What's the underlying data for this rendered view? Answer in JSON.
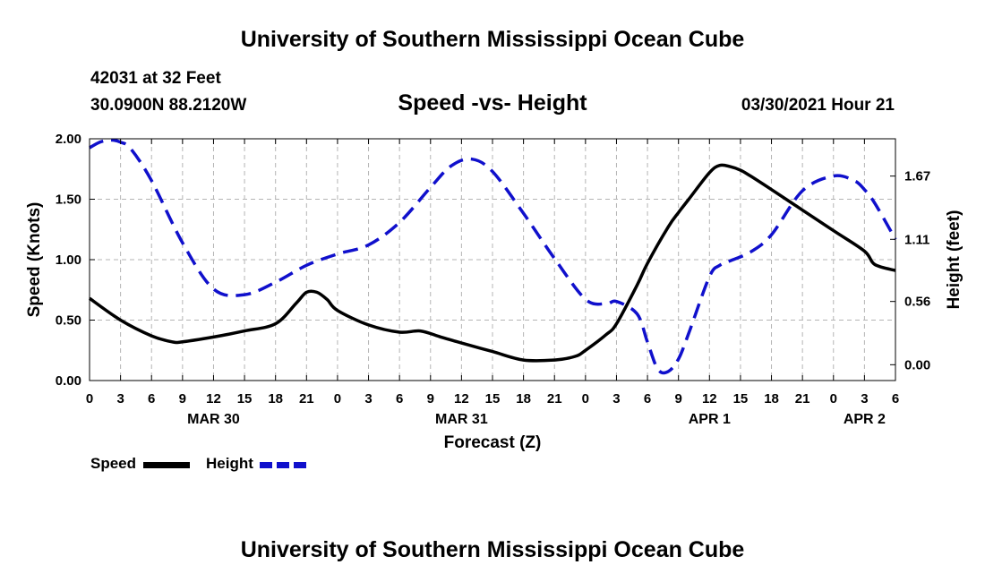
{
  "header": {
    "title": "University of Southern Mississippi Ocean Cube",
    "station": "42031 at 32 Feet",
    "coords": "30.0900N  88.2120W",
    "chart_title": "Speed -vs- Height",
    "date": "03/30/2021 Hour 21"
  },
  "footer": {
    "title": "University of Southern Mississippi Ocean Cube"
  },
  "legend": {
    "speed_label": "Speed",
    "height_label": "Height",
    "speed_color": "#000000",
    "height_color": "#1010cc"
  },
  "chart_data": {
    "type": "line",
    "title": "Speed -vs- Height",
    "xlabel": "Forecast (Z)",
    "ylabel": "Speed (Knots)",
    "ylabel_right": "Height (feet)",
    "x_range_hours": [
      0,
      78
    ],
    "ylim": [
      0,
      2.0
    ],
    "ylim_right": [
      -0.14,
      2.0
    ],
    "y_ticks": [
      "0.00",
      "0.50",
      "1.00",
      "1.50",
      "2.00"
    ],
    "y_ticks_right": [
      "0.00",
      "0.56",
      "1.11",
      "1.67"
    ],
    "x_ticks": [
      "0",
      "3",
      "6",
      "9",
      "12",
      "15",
      "18",
      "21",
      "0",
      "3",
      "6",
      "9",
      "12",
      "15",
      "18",
      "21",
      "0",
      "3",
      "6",
      "9",
      "12",
      "15",
      "18",
      "21",
      "0",
      "3",
      "6"
    ],
    "date_labels": [
      {
        "label": "MAR 30",
        "hour": 12
      },
      {
        "label": "MAR 31",
        "hour": 36
      },
      {
        "label": "APR 1",
        "hour": 60
      },
      {
        "label": "APR 2",
        "hour": 75
      }
    ],
    "grid": true,
    "series": [
      {
        "name": "Speed",
        "axis": "left",
        "color": "#000000",
        "dash": false,
        "x": [
          0,
          3,
          6,
          8,
          9,
          12,
          15,
          18,
          20,
          21,
          22,
          23,
          24,
          27,
          30,
          32,
          34,
          36,
          39,
          42,
          45,
          47,
          48,
          50,
          51,
          53,
          54,
          56,
          57,
          58,
          60,
          61,
          62,
          63,
          64,
          66,
          69,
          72,
          75,
          76,
          78
        ],
        "y": [
          0.68,
          0.5,
          0.37,
          0.32,
          0.32,
          0.36,
          0.41,
          0.47,
          0.64,
          0.73,
          0.73,
          0.67,
          0.58,
          0.46,
          0.4,
          0.41,
          0.36,
          0.31,
          0.24,
          0.17,
          0.17,
          0.2,
          0.25,
          0.38,
          0.47,
          0.79,
          0.97,
          1.27,
          1.39,
          1.5,
          1.72,
          1.78,
          1.77,
          1.74,
          1.69,
          1.58,
          1.41,
          1.24,
          1.07,
          0.96,
          0.91
        ]
      },
      {
        "name": "Height",
        "axis": "right",
        "color": "#1010cc",
        "dash": true,
        "x": [
          0,
          1,
          2,
          3,
          4,
          6,
          9,
          12,
          15,
          18,
          21,
          24,
          27,
          30,
          33,
          35,
          37,
          39,
          42,
          45,
          48,
          50,
          51,
          53,
          54,
          55,
          56,
          57,
          58,
          60,
          61,
          62,
          64,
          66,
          69,
          72,
          74,
          75,
          76,
          78
        ],
        "y": [
          1.92,
          1.97,
          1.99,
          1.97,
          1.91,
          1.63,
          1.08,
          0.67,
          0.62,
          0.73,
          0.88,
          0.98,
          1.06,
          1.26,
          1.57,
          1.76,
          1.82,
          1.71,
          1.34,
          0.94,
          0.58,
          0.54,
          0.56,
          0.45,
          0.2,
          -0.04,
          -0.06,
          0.05,
          0.28,
          0.78,
          0.88,
          0.92,
          1.0,
          1.15,
          1.54,
          1.67,
          1.63,
          1.55,
          1.43,
          1.11
        ]
      }
    ]
  }
}
